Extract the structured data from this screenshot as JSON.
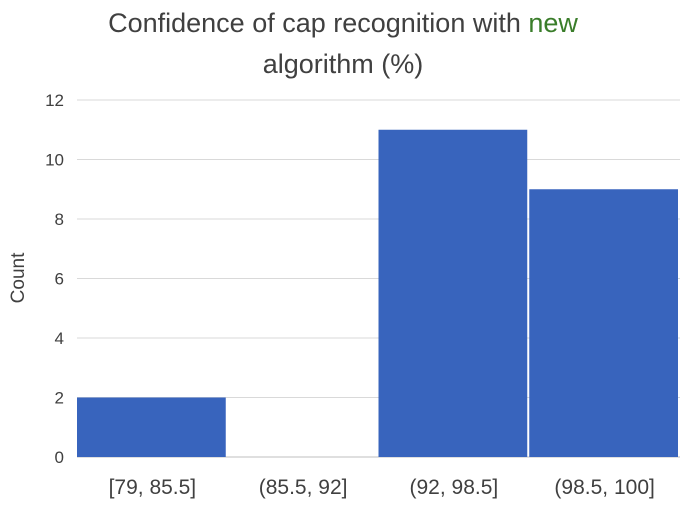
{
  "chart_data": {
    "type": "bar",
    "title_line1_prefix": "Confidence of cap recognition with ",
    "title_line1_accent": "new",
    "title_line2": "algorithm (%)",
    "xlabel": "",
    "ylabel": "Count",
    "categories": [
      "[79, 85.5]",
      "(85.5, 92]",
      "(92, 98.5]",
      "(98.5, 100]"
    ],
    "values": [
      2,
      0,
      11,
      9
    ],
    "ylim": [
      0,
      12
    ],
    "yticks": [
      "0",
      "2",
      "4",
      "6",
      "8",
      "10",
      "12"
    ],
    "grid": true,
    "colors": {
      "bar": "#3864bd",
      "grid": "#d9d9d9",
      "text": "#404040",
      "accent": "#3a7d2a"
    }
  }
}
